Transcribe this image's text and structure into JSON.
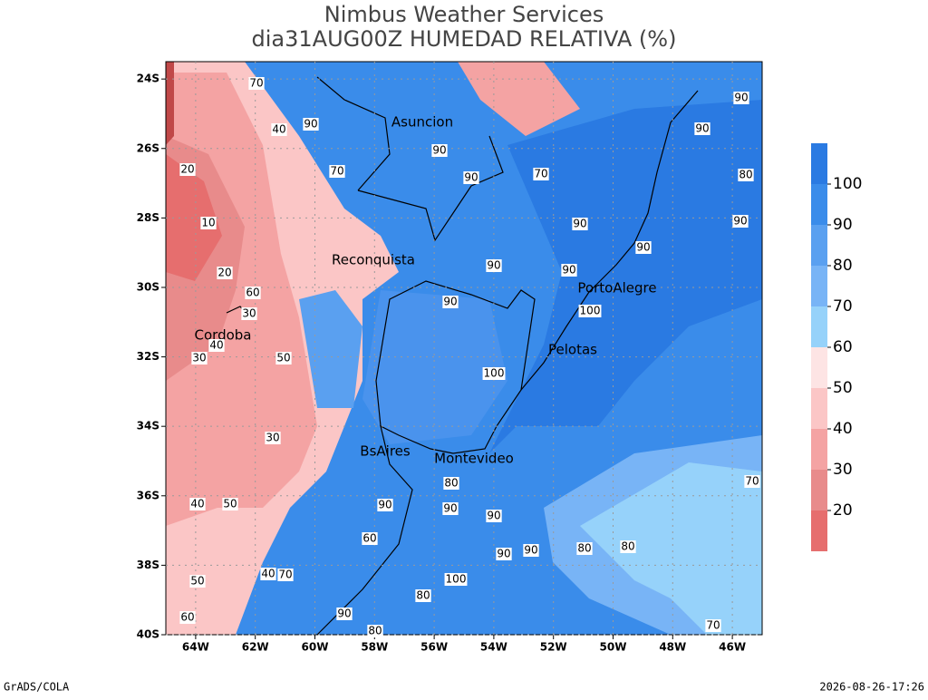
{
  "header": {
    "title": "Nimbus Weather Services",
    "subtitle": "dia31AUG00Z HUMEDAD RELATIVA (%)"
  },
  "map": {
    "xlim": [
      -65,
      -45
    ],
    "ylim": [
      -40,
      -23.5
    ],
    "xticks": [
      {
        "value": -64,
        "label": "64W"
      },
      {
        "value": -62,
        "label": "62W"
      },
      {
        "value": -60,
        "label": "60W"
      },
      {
        "value": -58,
        "label": "58W"
      },
      {
        "value": -56,
        "label": "56W"
      },
      {
        "value": -54,
        "label": "54W"
      },
      {
        "value": -52,
        "label": "52W"
      },
      {
        "value": -50,
        "label": "50W"
      },
      {
        "value": -48,
        "label": "48W"
      },
      {
        "value": -46,
        "label": "46W"
      }
    ],
    "yticks": [
      {
        "value": -24,
        "label": "24S"
      },
      {
        "value": -26,
        "label": "26S"
      },
      {
        "value": -28,
        "label": "28S"
      },
      {
        "value": -30,
        "label": "30S"
      },
      {
        "value": -32,
        "label": "32S"
      },
      {
        "value": -34,
        "label": "34S"
      },
      {
        "value": -36,
        "label": "36S"
      },
      {
        "value": -38,
        "label": "38S"
      },
      {
        "value": -40,
        "label": "40S"
      }
    ],
    "grid": true,
    "cities": [
      "Asuncion",
      "Reconquista",
      "PortoAlegre",
      "Cordoba",
      "Pelotas",
      "BsAires",
      "Montevideo"
    ],
    "contour_labels": [
      90,
      90,
      90,
      90,
      90,
      90,
      90,
      90,
      90,
      90,
      90,
      90,
      90,
      90,
      90,
      90,
      90,
      80,
      80,
      80,
      80,
      80,
      80,
      70,
      70,
      70,
      70,
      70,
      70,
      60,
      60,
      60,
      50,
      50,
      50,
      40,
      40,
      40,
      40,
      30,
      30,
      30,
      20,
      20,
      10,
      100,
      100,
      100
    ]
  },
  "colorbar": {
    "levels": [
      20,
      30,
      40,
      50,
      60,
      70,
      80,
      90,
      100
    ],
    "colors": [
      "#e66e6e",
      "#e88b8b",
      "#f4a3a3",
      "#fbc6c6",
      "#fde4e4",
      "#96d2fa",
      "#78b4f6",
      "#5aa0f0",
      "#3a8cea",
      "#2a7ae2"
    ]
  },
  "footer": {
    "left": "GrADS/COLA",
    "right": "2026-08-26-17:26"
  }
}
